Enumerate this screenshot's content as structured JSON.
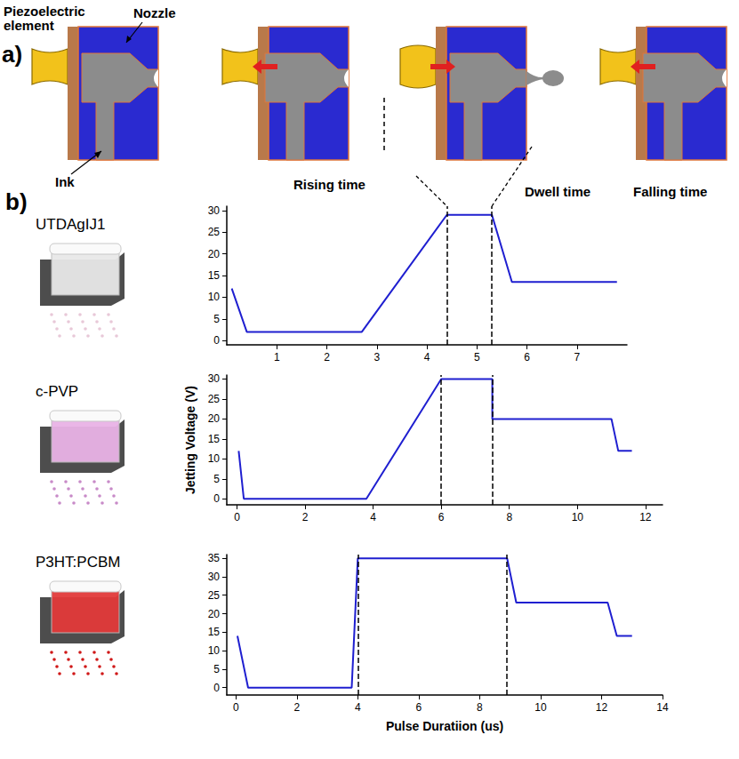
{
  "diagram": {
    "panel": "a)",
    "piezoelectric_element": "Piezoelectric element",
    "nozzle": "Nozzle",
    "ink": "Ink",
    "rising_time": "Rising time",
    "dwell_time": "Dwell time",
    "falling_time": "Falling time"
  },
  "charts_panel": "b)",
  "chart_data": [
    {
      "type": "line",
      "title": "UTDAgIJ1",
      "color": "#1f1fd0",
      "x": [
        0.1,
        0.4,
        2.7,
        4.4,
        5.3,
        5.7,
        7.8
      ],
      "values": [
        12,
        2,
        2,
        29,
        29,
        13.5,
        13.5
      ],
      "vlines": [
        4.4,
        5.3
      ],
      "xlim": [
        0,
        8
      ],
      "xticks": [
        1,
        2,
        3,
        4,
        5,
        6,
        7
      ],
      "ylim": [
        -1,
        31
      ],
      "yticks": [
        0,
        5,
        10,
        15,
        20,
        25,
        30
      ],
      "grid": false
    },
    {
      "type": "line",
      "title": "c-PVP",
      "color": "#1f1fd0",
      "ylabel": "Jetting Voltage (V)",
      "x": [
        0.05,
        0.2,
        3.8,
        6,
        7.5,
        7.5,
        11,
        11.2,
        11.6
      ],
      "values": [
        12,
        0,
        0,
        30,
        30,
        20,
        20,
        12,
        12
      ],
      "vlines": [
        6,
        7.5
      ],
      "xlim": [
        -0.3,
        12.5
      ],
      "xticks": [
        0,
        2,
        4,
        6,
        8,
        10,
        12
      ],
      "ylim": [
        -1.5,
        31
      ],
      "yticks": [
        0,
        5,
        10,
        15,
        20,
        25,
        30
      ],
      "grid": false
    },
    {
      "type": "line",
      "title": "P3HT:PCBM",
      "color": "#1f1fd0",
      "xlabel": "Pulse Duratiion (us)",
      "x": [
        0.05,
        0.4,
        3.8,
        4,
        8.9,
        9.2,
        12.2,
        12.5,
        13
      ],
      "values": [
        14,
        0,
        0,
        35,
        35,
        23,
        23,
        14,
        14
      ],
      "vlines": [
        4,
        8.9
      ],
      "xlim": [
        -0.3,
        14
      ],
      "xticks": [
        0,
        2,
        4,
        6,
        8,
        10,
        12,
        14
      ],
      "ylim": [
        -2,
        36
      ],
      "yticks": [
        0,
        5,
        10,
        15,
        20,
        25,
        30,
        35
      ],
      "grid": false
    }
  ]
}
